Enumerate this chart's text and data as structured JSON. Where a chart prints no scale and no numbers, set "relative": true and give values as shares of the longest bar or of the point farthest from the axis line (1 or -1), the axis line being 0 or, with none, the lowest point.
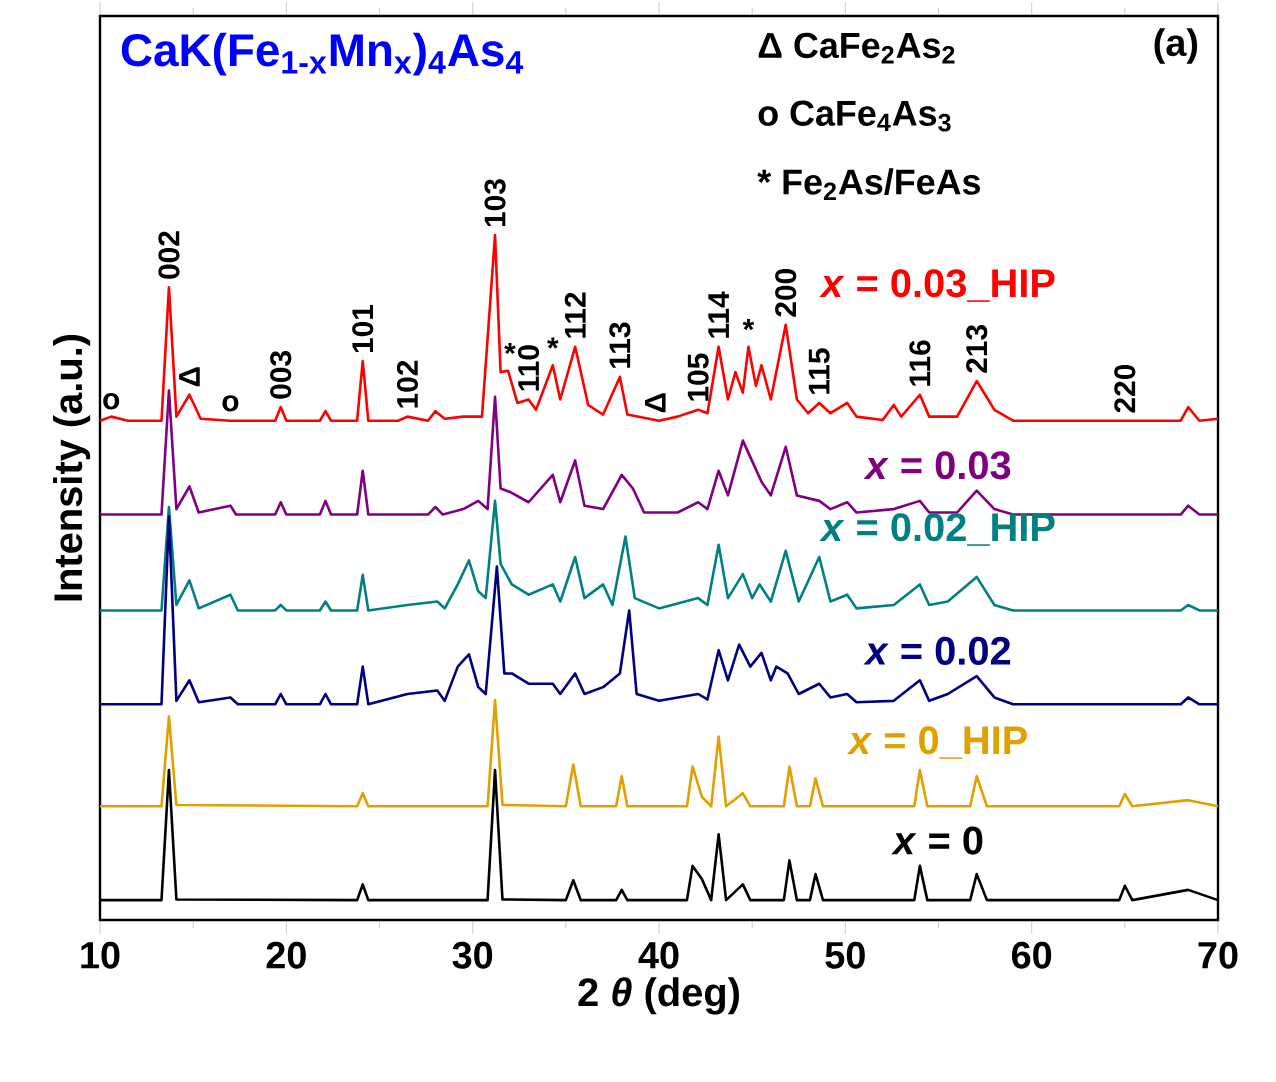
{
  "chart_data": {
    "type": "line",
    "relative": true,
    "title": "CaK(Fe$_{1-x}$Mn$_{x}$)$_{4}$As$_{4}$",
    "xlabel": "2 *θ* (deg)",
    "ylabel": "Intensity (a.u.)",
    "xlim": [
      10,
      70
    ],
    "xticks": [
      10,
      20,
      30,
      40,
      50,
      60,
      70
    ],
    "series": [
      {
        "name": "*x* = 0.03_HIP",
        "color": "#ff0000",
        "x": [
          10,
          10.6,
          11.5,
          13.3,
          13.7,
          14.1,
          14.8,
          15.4,
          17,
          19.4,
          19.7,
          20,
          21.8,
          22.1,
          22.4,
          23.8,
          24.1,
          24.4,
          26,
          26.5,
          27.6,
          28,
          28.5,
          29.5,
          30.5,
          31.2,
          31.5,
          31.9,
          32.4,
          33.0,
          33.4,
          34.3,
          34.7,
          35.5,
          36.2,
          37.0,
          37.9,
          38.3,
          40,
          41.0,
          42.1,
          42.6,
          43.2,
          43.7,
          44.1,
          44.5,
          44.8,
          45.2,
          45.5,
          46.0,
          46.8,
          47.4,
          48.0,
          48.6,
          49.2,
          50.1,
          50.6,
          52.0,
          52.6,
          53.0,
          54.0,
          54.5,
          56.0,
          57.05,
          58,
          59,
          65,
          68.0,
          68.4,
          69,
          70
        ],
        "values": [
          0.729,
          0.735,
          0.729,
          0.729,
          0.924,
          0.735,
          0.767,
          0.732,
          0.729,
          0.729,
          0.749,
          0.729,
          0.729,
          0.743,
          0.729,
          0.729,
          0.816,
          0.729,
          0.729,
          0.735,
          0.729,
          0.743,
          0.732,
          0.735,
          0.735,
          1.0,
          0.8,
          0.802,
          0.755,
          0.76,
          0.745,
          0.81,
          0.76,
          0.837,
          0.752,
          0.738,
          0.793,
          0.738,
          0.729,
          0.735,
          0.745,
          0.74,
          0.837,
          0.76,
          0.8,
          0.77,
          0.837,
          0.78,
          0.81,
          0.76,
          0.869,
          0.76,
          0.74,
          0.755,
          0.74,
          0.755,
          0.735,
          0.73,
          0.752,
          0.735,
          0.767,
          0.735,
          0.735,
          0.787,
          0.745,
          0.729,
          0.729,
          0.729,
          0.749,
          0.729,
          0.732
        ]
      },
      {
        "name": "*x* = 0.03",
        "color": "#800080",
        "x": [
          10,
          13.3,
          13.7,
          14.1,
          14.8,
          15.3,
          17.0,
          17.3,
          19.4,
          19.7,
          20.0,
          21.8,
          22.1,
          22.4,
          23.8,
          24.1,
          24.4,
          27.6,
          28.0,
          28.4,
          29.5,
          30.3,
          30.8,
          31.2,
          31.5,
          32.0,
          33.0,
          34.3,
          34.7,
          35.5,
          36.0,
          37.0,
          38.0,
          38.6,
          39.2,
          41.0,
          42.1,
          42.6,
          43.2,
          43.7,
          44.5,
          45.0,
          45.5,
          46.0,
          46.8,
          47.4,
          48.6,
          49.2,
          50.1,
          50.6,
          52.6,
          54.0,
          54.5,
          56.0,
          57.05,
          58.0,
          59.0,
          65.0,
          68.0,
          68.4,
          69.0,
          70
        ],
        "values": [
          0.592,
          0.592,
          0.773,
          0.6,
          0.633,
          0.595,
          0.605,
          0.592,
          0.592,
          0.61,
          0.592,
          0.592,
          0.612,
          0.592,
          0.592,
          0.656,
          0.592,
          0.592,
          0.603,
          0.592,
          0.6,
          0.612,
          0.6,
          0.764,
          0.63,
          0.625,
          0.61,
          0.65,
          0.61,
          0.671,
          0.605,
          0.6,
          0.65,
          0.63,
          0.595,
          0.595,
          0.61,
          0.6,
          0.656,
          0.62,
          0.7,
          0.67,
          0.64,
          0.62,
          0.691,
          0.62,
          0.612,
          0.6,
          0.61,
          0.595,
          0.6,
          0.612,
          0.595,
          0.595,
          0.627,
          0.6,
          0.592,
          0.592,
          0.592,
          0.605,
          0.592,
          0.592
        ]
      },
      {
        "name": "*x* = 0.02_HIP",
        "color": "#008080",
        "x": [
          10,
          13.3,
          13.7,
          14.1,
          14.8,
          15.3,
          17.0,
          17.4,
          19.4,
          19.7,
          20.0,
          21.8,
          22.1,
          22.4,
          23.8,
          24.1,
          24.4,
          26.5,
          28.1,
          28.5,
          29.2,
          29.8,
          30.3,
          30.7,
          31.2,
          31.5,
          32.1,
          33.0,
          34.3,
          34.7,
          35.5,
          36.0,
          37.0,
          37.5,
          38.2,
          38.7,
          40.0,
          42.1,
          42.6,
          43.2,
          43.7,
          44.5,
          45.0,
          45.4,
          46.0,
          46.8,
          47.5,
          48.6,
          49.2,
          50.1,
          50.6,
          52.6,
          54.0,
          54.5,
          55.5,
          57.05,
          58.0,
          59.0,
          65.0,
          68.0,
          68.4,
          69.0,
          70
        ],
        "values": [
          0.452,
          0.452,
          0.603,
          0.46,
          0.496,
          0.455,
          0.475,
          0.452,
          0.452,
          0.46,
          0.452,
          0.452,
          0.465,
          0.452,
          0.452,
          0.504,
          0.452,
          0.46,
          0.465,
          0.455,
          0.49,
          0.525,
          0.48,
          0.47,
          0.612,
          0.52,
          0.49,
          0.475,
          0.49,
          0.465,
          0.53,
          0.47,
          0.49,
          0.46,
          0.56,
          0.47,
          0.455,
          0.47,
          0.46,
          0.548,
          0.47,
          0.505,
          0.47,
          0.49,
          0.465,
          0.539,
          0.465,
          0.53,
          0.465,
          0.475,
          0.455,
          0.46,
          0.49,
          0.46,
          0.465,
          0.501,
          0.46,
          0.452,
          0.452,
          0.452,
          0.46,
          0.452,
          0.452
        ]
      },
      {
        "name": "*x* = 0.02",
        "color": "#000080",
        "x": [
          10,
          13.3,
          13.7,
          14.1,
          14.8,
          15.3,
          17.0,
          17.4,
          19.4,
          19.7,
          20.0,
          21.8,
          22.1,
          22.4,
          23.8,
          24.1,
          24.4,
          26.5,
          28.1,
          28.5,
          29.2,
          29.8,
          30.3,
          30.7,
          31.3,
          31.7,
          32.1,
          33.0,
          34.3,
          34.7,
          35.5,
          36.0,
          37.0,
          37.9,
          38.4,
          38.8,
          40.0,
          42.1,
          42.6,
          43.2,
          43.7,
          44.3,
          44.9,
          45.5,
          46.0,
          46.3,
          46.9,
          47.5,
          48.6,
          49.2,
          50.1,
          50.6,
          52.6,
          54.0,
          54.5,
          55.5,
          57.05,
          58.0,
          59.0,
          65.0,
          68.0,
          68.4,
          69.0,
          70
        ],
        "values": [
          0.315,
          0.315,
          0.589,
          0.32,
          0.35,
          0.318,
          0.325,
          0.315,
          0.315,
          0.33,
          0.315,
          0.315,
          0.33,
          0.315,
          0.315,
          0.37,
          0.315,
          0.33,
          0.335,
          0.32,
          0.37,
          0.388,
          0.34,
          0.33,
          0.516,
          0.36,
          0.36,
          0.345,
          0.345,
          0.33,
          0.36,
          0.33,
          0.34,
          0.36,
          0.452,
          0.33,
          0.32,
          0.33,
          0.322,
          0.394,
          0.35,
          0.402,
          0.37,
          0.39,
          0.35,
          0.37,
          0.36,
          0.33,
          0.345,
          0.325,
          0.33,
          0.318,
          0.32,
          0.35,
          0.32,
          0.33,
          0.356,
          0.325,
          0.315,
          0.315,
          0.315,
          0.325,
          0.315,
          0.315
        ]
      },
      {
        "name": "*x* = 0_HIP",
        "color": "#e0a000",
        "x": [
          10,
          13.3,
          13.7,
          14.1,
          23.8,
          24.1,
          24.4,
          30.8,
          31.2,
          31.6,
          35.0,
          35.4,
          35.8,
          37.7,
          38.0,
          38.3,
          41.5,
          41.8,
          42.3,
          42.8,
          43.2,
          43.6,
          44.5,
          44.9,
          46.7,
          47.0,
          47.4,
          48.1,
          48.4,
          48.8,
          53.7,
          54.0,
          54.4,
          56.7,
          57.05,
          57.6,
          64.7,
          65.0,
          65.4,
          68.4,
          70
        ],
        "values": [
          0.166,
          0.166,
          0.297,
          0.168,
          0.166,
          0.185,
          0.166,
          0.166,
          0.321,
          0.168,
          0.166,
          0.227,
          0.166,
          0.166,
          0.21,
          0.166,
          0.166,
          0.224,
          0.18,
          0.166,
          0.268,
          0.166,
          0.185,
          0.166,
          0.166,
          0.224,
          0.166,
          0.166,
          0.207,
          0.166,
          0.166,
          0.219,
          0.166,
          0.166,
          0.21,
          0.166,
          0.166,
          0.184,
          0.166,
          0.175,
          0.166
        ]
      },
      {
        "name": "*x* = 0",
        "color": "#000000",
        "x": [
          10,
          13.3,
          13.7,
          14.1,
          23.8,
          24.1,
          24.4,
          30.8,
          31.2,
          31.6,
          35.0,
          35.4,
          35.8,
          37.7,
          38.0,
          38.3,
          41.5,
          41.8,
          42.3,
          42.8,
          43.2,
          43.6,
          44.5,
          44.9,
          46.7,
          47.0,
          47.4,
          48.1,
          48.4,
          48.8,
          53.7,
          54.0,
          54.4,
          56.7,
          57.05,
          57.6,
          64.7,
          65.0,
          65.4,
          68.4,
          70
        ],
        "values": [
          0.029,
          0.029,
          0.219,
          0.03,
          0.029,
          0.052,
          0.029,
          0.029,
          0.219,
          0.03,
          0.029,
          0.058,
          0.029,
          0.029,
          0.044,
          0.029,
          0.029,
          0.079,
          0.06,
          0.029,
          0.125,
          0.029,
          0.052,
          0.029,
          0.029,
          0.087,
          0.029,
          0.029,
          0.067,
          0.029,
          0.029,
          0.079,
          0.029,
          0.029,
          0.067,
          0.029,
          0.029,
          0.05,
          0.029,
          0.044,
          0.029
        ]
      }
    ],
    "annotations": [
      {
        "text": "o",
        "x": 10.6,
        "y": 0.735
      },
      {
        "text": "002",
        "x": 13.7,
        "y": 0.924
      },
      {
        "text": "Δ",
        "x": 14.8,
        "y": 0.767
      },
      {
        "text": "o",
        "x": 17.0,
        "y": 0.732
      },
      {
        "text": "003",
        "x": 19.7,
        "y": 0.749
      },
      {
        "text": "101",
        "x": 24.1,
        "y": 0.816
      },
      {
        "text": "102",
        "x": 26.5,
        "y": 0.735
      },
      {
        "text": "103",
        "x": 31.2,
        "y": 1.0
      },
      {
        "text": "*",
        "x": 32.0,
        "y": 0.802
      },
      {
        "text": "110",
        "x": 33.0,
        "y": 0.76
      },
      {
        "text": "*",
        "x": 34.3,
        "y": 0.81
      },
      {
        "text": "112",
        "x": 35.5,
        "y": 0.837
      },
      {
        "text": "113",
        "x": 37.9,
        "y": 0.793
      },
      {
        "text": "Δ",
        "x": 39.8,
        "y": 0.729
      },
      {
        "text": "105",
        "x": 42.1,
        "y": 0.745
      },
      {
        "text": "114",
        "x": 43.2,
        "y": 0.837
      },
      {
        "text": "*",
        "x": 44.8,
        "y": 0.837
      },
      {
        "text": "200",
        "x": 46.8,
        "y": 0.869
      },
      {
        "text": "115",
        "x": 48.6,
        "y": 0.755
      },
      {
        "text": "116",
        "x": 54.0,
        "y": 0.767
      },
      {
        "text": "213",
        "x": 57.05,
        "y": 0.787
      },
      {
        "text": "220",
        "x": 65.0,
        "y": 0.729
      },
      "(a)",
      "Δ CaFe$_{2}$As$_{2}$",
      "o CaFe$_{4}$As$_{3}$",
      "* Fe$_{2}$As/FeAs"
    ]
  }
}
